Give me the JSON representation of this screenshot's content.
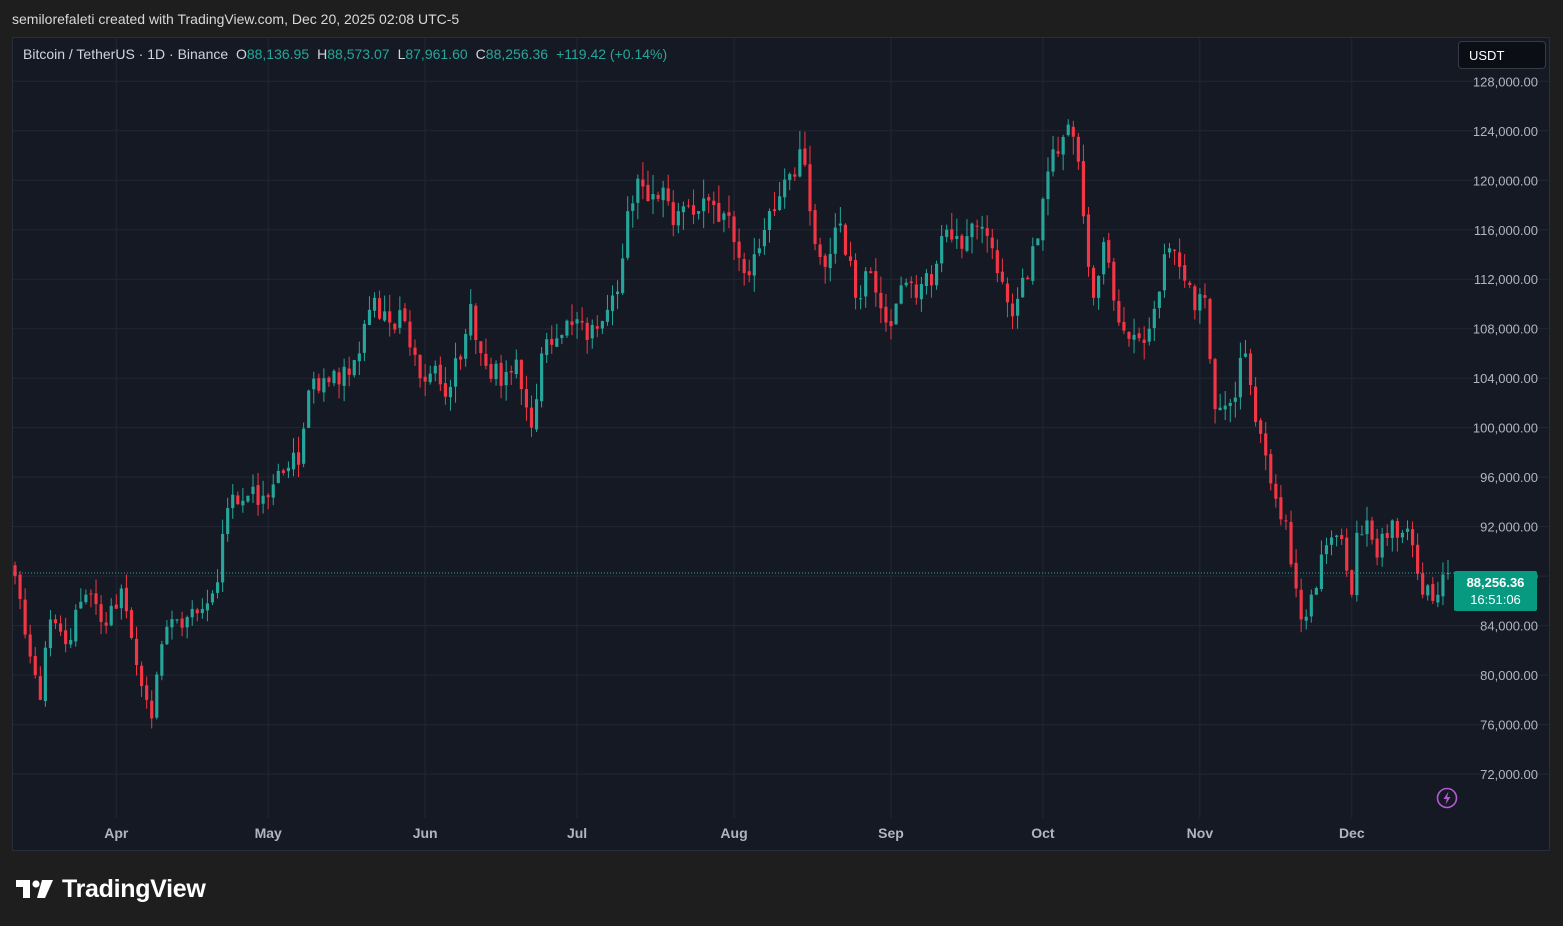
{
  "header": {
    "credit": "semilorefaleti created with TradingView.com, Dec 20, 2025 02:08 UTC-5"
  },
  "legend": {
    "symbol": "Bitcoin / TetherUS · 1D · Binance",
    "open_label": "O",
    "open": "88,136.95",
    "high_label": "H",
    "high": "88,573.07",
    "low_label": "L",
    "low": "87,961.60",
    "close_label": "C",
    "close": "88,256.36",
    "change": "+119.42 (+0.14%)"
  },
  "currency": "USDT",
  "last_price": {
    "price": "88,256.36",
    "countdown": "16:51:06"
  },
  "colors": {
    "up": "#26a69a",
    "down": "#f23645",
    "background": "#151924",
    "grid": "#232734",
    "tag": "#089981"
  },
  "icons": {
    "bolt": "lightning-icon",
    "logo": "tradingview-logo-icon"
  },
  "footer": {
    "brand": "TradingView"
  },
  "chart_data": {
    "type": "candlestick",
    "title": "Bitcoin / TetherUS · 1D · Binance",
    "x_tick_labels": [
      "Apr",
      "May",
      "Jun",
      "Jul",
      "Aug",
      "Sep",
      "Oct",
      "Nov",
      "Dec"
    ],
    "y_tick_labels": [
      "72,000.00",
      "76,000.00",
      "80,000.00",
      "84,000.00",
      "88,000.00",
      "92,000.00",
      "96,000.00",
      "100,000.00",
      "104,000.00",
      "108,000.00",
      "112,000.00",
      "116,000.00",
      "120,000.00",
      "124,000.00",
      "128,000.00"
    ],
    "y_ticks": [
      72000,
      76000,
      80000,
      84000,
      88000,
      92000,
      96000,
      100000,
      104000,
      108000,
      112000,
      116000,
      120000,
      124000,
      128000
    ],
    "ylim": [
      69500,
      131500
    ],
    "x_range": [
      "2025-03-12",
      "2025-12-20"
    ],
    "months": [
      {
        "label": "Apr",
        "date": "2025-04-01"
      },
      {
        "label": "May",
        "date": "2025-05-01"
      },
      {
        "label": "Jun",
        "date": "2025-06-01"
      },
      {
        "label": "Jul",
        "date": "2025-07-01"
      },
      {
        "label": "Aug",
        "date": "2025-08-01"
      },
      {
        "label": "Sep",
        "date": "2025-09-01"
      },
      {
        "label": "Oct",
        "date": "2025-10-01"
      },
      {
        "label": "Nov",
        "date": "2025-11-01"
      },
      {
        "label": "Dec",
        "date": "2025-12-01"
      }
    ],
    "last_close": 88256.36,
    "grid": true,
    "anchors": [
      [
        "2025-03-12",
        88000
      ],
      [
        "2025-03-15",
        81500
      ],
      [
        "2025-03-17",
        78000
      ],
      [
        "2025-03-19",
        84500
      ],
      [
        "2025-03-22",
        82500
      ],
      [
        "2025-03-26",
        86500
      ],
      [
        "2025-03-30",
        84000
      ],
      [
        "2025-04-02",
        87000
      ],
      [
        "2025-04-04",
        83000
      ],
      [
        "2025-04-07",
        78000
      ],
      [
        "2025-04-08",
        76500
      ],
      [
        "2025-04-10",
        82500
      ],
      [
        "2025-04-13",
        84500
      ],
      [
        "2025-04-17",
        85000
      ],
      [
        "2025-04-21",
        87500
      ],
      [
        "2025-04-23",
        93500
      ],
      [
        "2025-04-27",
        94500
      ],
      [
        "2025-04-30",
        94500
      ],
      [
        "2025-05-03",
        96500
      ],
      [
        "2025-05-07",
        97000
      ],
      [
        "2025-05-09",
        103000
      ],
      [
        "2025-05-12",
        104000
      ],
      [
        "2025-05-15",
        103500
      ],
      [
        "2025-05-19",
        106000
      ],
      [
        "2025-05-22",
        110500
      ],
      [
        "2025-05-25",
        108500
      ],
      [
        "2025-05-27",
        109500
      ],
      [
        "2025-05-31",
        104000
      ],
      [
        "2025-06-03",
        105000
      ],
      [
        "2025-06-05",
        102500
      ],
      [
        "2025-06-08",
        105500
      ],
      [
        "2025-06-10",
        110000
      ],
      [
        "2025-06-13",
        105000
      ],
      [
        "2025-06-17",
        104500
      ],
      [
        "2025-06-19",
        105500
      ],
      [
        "2025-06-22",
        100000
      ],
      [
        "2025-06-24",
        106000
      ],
      [
        "2025-06-28",
        107500
      ],
      [
        "2025-07-02",
        108500
      ],
      [
        "2025-07-05",
        108000
      ],
      [
        "2025-07-09",
        111000
      ],
      [
        "2025-07-11",
        117500
      ],
      [
        "2025-07-14",
        119500
      ],
      [
        "2025-07-17",
        118500
      ],
      [
        "2025-07-21",
        117500
      ],
      [
        "2025-07-25",
        117500
      ],
      [
        "2025-07-28",
        118000
      ],
      [
        "2025-08-01",
        115000
      ],
      [
        "2025-08-03",
        112500
      ],
      [
        "2025-08-06",
        114500
      ],
      [
        "2025-08-09",
        117500
      ],
      [
        "2025-08-12",
        120500
      ],
      [
        "2025-08-14",
        122500
      ],
      [
        "2025-08-16",
        117500
      ],
      [
        "2025-08-19",
        113000
      ],
      [
        "2025-08-22",
        116500
      ],
      [
        "2025-08-25",
        110500
      ],
      [
        "2025-08-28",
        112500
      ],
      [
        "2025-08-31",
        108500
      ],
      [
        "2025-09-03",
        111500
      ],
      [
        "2025-09-06",
        110500
      ],
      [
        "2025-09-09",
        111500
      ],
      [
        "2025-09-12",
        116000
      ],
      [
        "2025-09-14",
        115500
      ],
      [
        "2025-09-17",
        116500
      ],
      [
        "2025-09-20",
        115500
      ],
      [
        "2025-09-22",
        112500
      ],
      [
        "2025-09-25",
        109000
      ],
      [
        "2025-09-28",
        112000
      ],
      [
        "2025-10-01",
        118500
      ],
      [
        "2025-10-03",
        122500
      ],
      [
        "2025-10-05",
        123500
      ],
      [
        "2025-10-06",
        124500
      ],
      [
        "2025-10-08",
        121500
      ],
      [
        "2025-10-10",
        113000
      ],
      [
        "2025-10-11",
        110500
      ],
      [
        "2025-10-13",
        115000
      ],
      [
        "2025-10-16",
        108500
      ],
      [
        "2025-10-19",
        107500
      ],
      [
        "2025-10-22",
        108000
      ],
      [
        "2025-10-24",
        111000
      ],
      [
        "2025-10-26",
        114500
      ],
      [
        "2025-10-28",
        113000
      ],
      [
        "2025-10-31",
        109500
      ],
      [
        "2025-11-02",
        110500
      ],
      [
        "2025-11-04",
        101500
      ],
      [
        "2025-11-07",
        102000
      ],
      [
        "2025-11-10",
        106000
      ],
      [
        "2025-11-13",
        99500
      ],
      [
        "2025-11-15",
        95500
      ],
      [
        "2025-11-18",
        92500
      ],
      [
        "2025-11-20",
        87000
      ],
      [
        "2025-11-21",
        84500
      ],
      [
        "2025-11-23",
        86500
      ],
      [
        "2025-11-26",
        90500
      ],
      [
        "2025-11-29",
        91000
      ],
      [
        "2025-12-01",
        86500
      ],
      [
        "2025-12-02",
        91500
      ],
      [
        "2025-12-04",
        92500
      ],
      [
        "2025-12-06",
        89500
      ],
      [
        "2025-12-09",
        92500
      ],
      [
        "2025-12-11",
        91500
      ],
      [
        "2025-12-13",
        90500
      ],
      [
        "2025-12-15",
        86500
      ],
      [
        "2025-12-17",
        86000
      ],
      [
        "2025-12-19",
        88136.95
      ],
      [
        "2025-12-20",
        88256.36
      ]
    ]
  }
}
